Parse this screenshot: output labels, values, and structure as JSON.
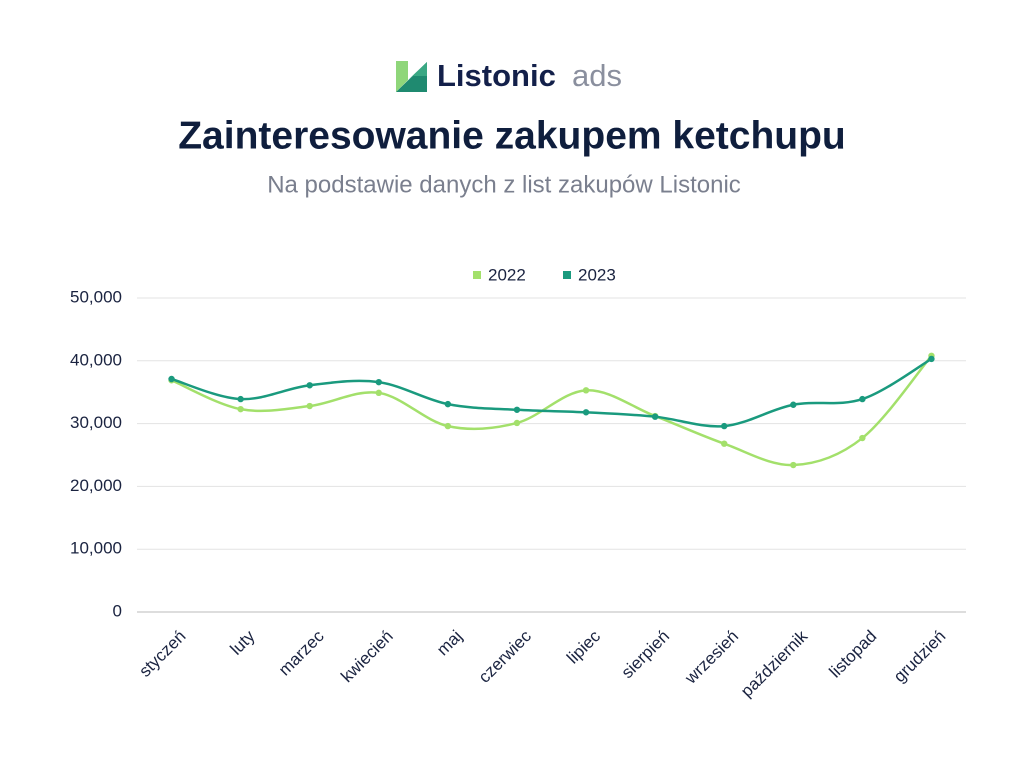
{
  "logo": {
    "brand": "Listonic",
    "product": "ads"
  },
  "chart_data": {
    "type": "line",
    "title": "Zainteresowanie zakupem ketchupu",
    "subtitle": "Na podstawie danych z list zakupów Listonic",
    "categories": [
      "styczeń",
      "luty",
      "marzec",
      "kwiecień",
      "maj",
      "czerwiec",
      "lipiec",
      "sierpień",
      "wrzesień",
      "październik",
      "listopad",
      "grudzień"
    ],
    "series": [
      {
        "name": "2022",
        "color": "#a3e06b",
        "values": [
          36900,
          32300,
          32800,
          34900,
          29600,
          30100,
          35300,
          31200,
          26800,
          23400,
          27700,
          40800
        ]
      },
      {
        "name": "2023",
        "color": "#1a9a7e",
        "values": [
          37100,
          33900,
          36100,
          36600,
          33100,
          32200,
          31800,
          31100,
          29600,
          33000,
          33900,
          40300
        ]
      }
    ],
    "ylim": [
      0,
      50000
    ],
    "yticks": [
      0,
      {
        "value": 10000,
        "label": "10,000"
      },
      {
        "value": 20000,
        "label": "20,000"
      },
      {
        "value": 30000,
        "label": "30,000"
      },
      {
        "value": 40000,
        "label": "40,000"
      },
      {
        "value": 50000,
        "label": "50,000"
      }
    ],
    "grid": true,
    "smooth": true,
    "legend": "top"
  }
}
